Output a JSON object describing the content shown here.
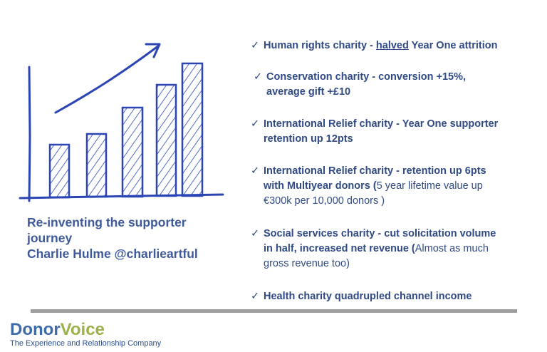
{
  "caption": {
    "line1": "Re-inventing the supporter",
    "line2": "journey",
    "line3": "Charlie Hulme @charlieartful"
  },
  "bullets": [
    {
      "check": "✓",
      "lines": [
        [
          {
            "t": "Human rights charity - ",
            "s": "strong"
          },
          {
            "t": "halved",
            "s": "strong ul"
          },
          {
            "t": " Year One attrition",
            "s": "strong"
          }
        ]
      ]
    },
    {
      "check": "✓",
      "lines": [
        [
          {
            "t": "Conservation charity - conversion +15%,",
            "s": "strong"
          }
        ],
        [
          {
            "t": "average gift +£10",
            "s": "strong"
          }
        ]
      ]
    },
    {
      "check": "✓",
      "lines": [
        [
          {
            "t": "International Relief charity - Year One supporter",
            "s": "strong"
          }
        ],
        [
          {
            "t": "retention up 12pts",
            "s": "strong"
          }
        ]
      ]
    },
    {
      "check": "✓",
      "lines": [
        [
          {
            "t": "International Relief charity - retention up 6pts",
            "s": "strong"
          }
        ],
        [
          {
            "t": "with Multiyear donors (",
            "s": "strong"
          },
          {
            "t": "5 year lifetime value up",
            "s": "plain"
          }
        ],
        [
          {
            "t": "€300k per 10,000 donors )",
            "s": "plain"
          }
        ]
      ]
    },
    {
      "check": "✓",
      "lines": [
        [
          {
            "t": "Social services charity - cut solicitation volume",
            "s": "strong"
          }
        ],
        [
          {
            "t": "in half, increased net revenue (",
            "s": "strong"
          },
          {
            "t": "Almost as much",
            "s": "plain"
          }
        ],
        [
          {
            "t": "gross revenue too)",
            "s": "plain"
          }
        ]
      ]
    },
    {
      "check": "✓",
      "lines": [
        [
          {
            "t": "Health charity quadrupled channel income",
            "s": "strong"
          }
        ]
      ]
    }
  ],
  "logo": {
    "word_part1": "Donor",
    "word_part2": "Voice",
    "tagline": "The Experience and Relationship Company"
  },
  "colors": {
    "text_blue": "#2f4a85",
    "sketch_blue": "#2b45b5",
    "logo_blue": "#3e6aa8",
    "logo_green": "#9ab24a",
    "divider": "#9e9e9e"
  }
}
